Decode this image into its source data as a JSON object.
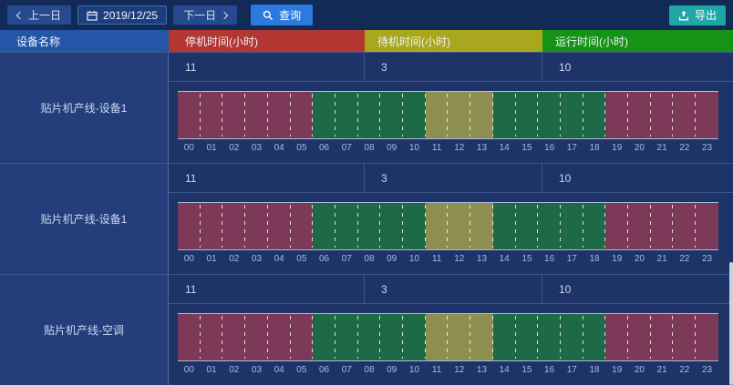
{
  "toolbar": {
    "prev_label": "上一日",
    "date_value": "2019/12/25",
    "next_label": "下一日",
    "query_label": "查询",
    "export_label": "导出"
  },
  "table": {
    "name_header": "设备名称",
    "stop_header": "停机时间(小时)",
    "standby_header": "待机时间(小时)",
    "run_header": "运行时间(小时)"
  },
  "header_colors": {
    "stop": "#b23631",
    "standby": "#a9a71d",
    "run": "#149314"
  },
  "status_colors": {
    "stop": "#7c3a58",
    "standby": "#8d8f51",
    "run": "#1e6a47"
  },
  "rows": [
    {
      "device": "贴片机产线-设备1",
      "stop_hours": "11",
      "standby_hours": "3",
      "run_hours": "10"
    },
    {
      "device": "贴片机产线-设备1",
      "stop_hours": "11",
      "standby_hours": "3",
      "run_hours": "10"
    },
    {
      "device": "贴片机产线-空调",
      "stop_hours": "11",
      "standby_hours": "3",
      "run_hours": "10"
    }
  ],
  "chart_data": [
    {
      "type": "heatmap",
      "title": "贴片机产线-设备1",
      "x": [
        "00",
        "01",
        "02",
        "03",
        "04",
        "05",
        "06",
        "07",
        "08",
        "09",
        "10",
        "11",
        "12",
        "13",
        "14",
        "15",
        "16",
        "17",
        "18",
        "19",
        "20",
        "21",
        "22",
        "23"
      ],
      "statuses": [
        "stop",
        "stop",
        "stop",
        "stop",
        "stop",
        "stop",
        "run",
        "run",
        "run",
        "run",
        "run",
        "standby",
        "standby",
        "standby",
        "run",
        "run",
        "run",
        "run",
        "run",
        "stop",
        "stop",
        "stop",
        "stop",
        "stop"
      ],
      "legend": {
        "stop": "停机时间(小时)",
        "standby": "待机时间(小时)",
        "run": "运行时间(小时)"
      },
      "totals": {
        "stop_hours": 11,
        "standby_hours": 3,
        "run_hours": 10
      }
    },
    {
      "type": "heatmap",
      "title": "贴片机产线-设备1",
      "x": [
        "00",
        "01",
        "02",
        "03",
        "04",
        "05",
        "06",
        "07",
        "08",
        "09",
        "10",
        "11",
        "12",
        "13",
        "14",
        "15",
        "16",
        "17",
        "18",
        "19",
        "20",
        "21",
        "22",
        "23"
      ],
      "statuses": [
        "stop",
        "stop",
        "stop",
        "stop",
        "stop",
        "stop",
        "run",
        "run",
        "run",
        "run",
        "run",
        "standby",
        "standby",
        "standby",
        "run",
        "run",
        "run",
        "run",
        "run",
        "stop",
        "stop",
        "stop",
        "stop",
        "stop"
      ],
      "legend": {
        "stop": "停机时间(小时)",
        "standby": "待机时间(小时)",
        "run": "运行时间(小时)"
      },
      "totals": {
        "stop_hours": 11,
        "standby_hours": 3,
        "run_hours": 10
      }
    },
    {
      "type": "heatmap",
      "title": "贴片机产线-空调",
      "x": [
        "00",
        "01",
        "02",
        "03",
        "04",
        "05",
        "06",
        "07",
        "08",
        "09",
        "10",
        "11",
        "12",
        "13",
        "14",
        "15",
        "16",
        "17",
        "18",
        "19",
        "20",
        "21",
        "22",
        "23"
      ],
      "statuses": [
        "stop",
        "stop",
        "stop",
        "stop",
        "stop",
        "stop",
        "run",
        "run",
        "run",
        "run",
        "run",
        "standby",
        "standby",
        "standby",
        "run",
        "run",
        "run",
        "run",
        "run",
        "stop",
        "stop",
        "stop",
        "stop",
        "stop"
      ],
      "legend": {
        "stop": "停机时间(小时)",
        "standby": "待机时间(小时)",
        "run": "运行时间(小时)"
      },
      "totals": {
        "stop_hours": 11,
        "standby_hours": 3,
        "run_hours": 10
      }
    }
  ]
}
